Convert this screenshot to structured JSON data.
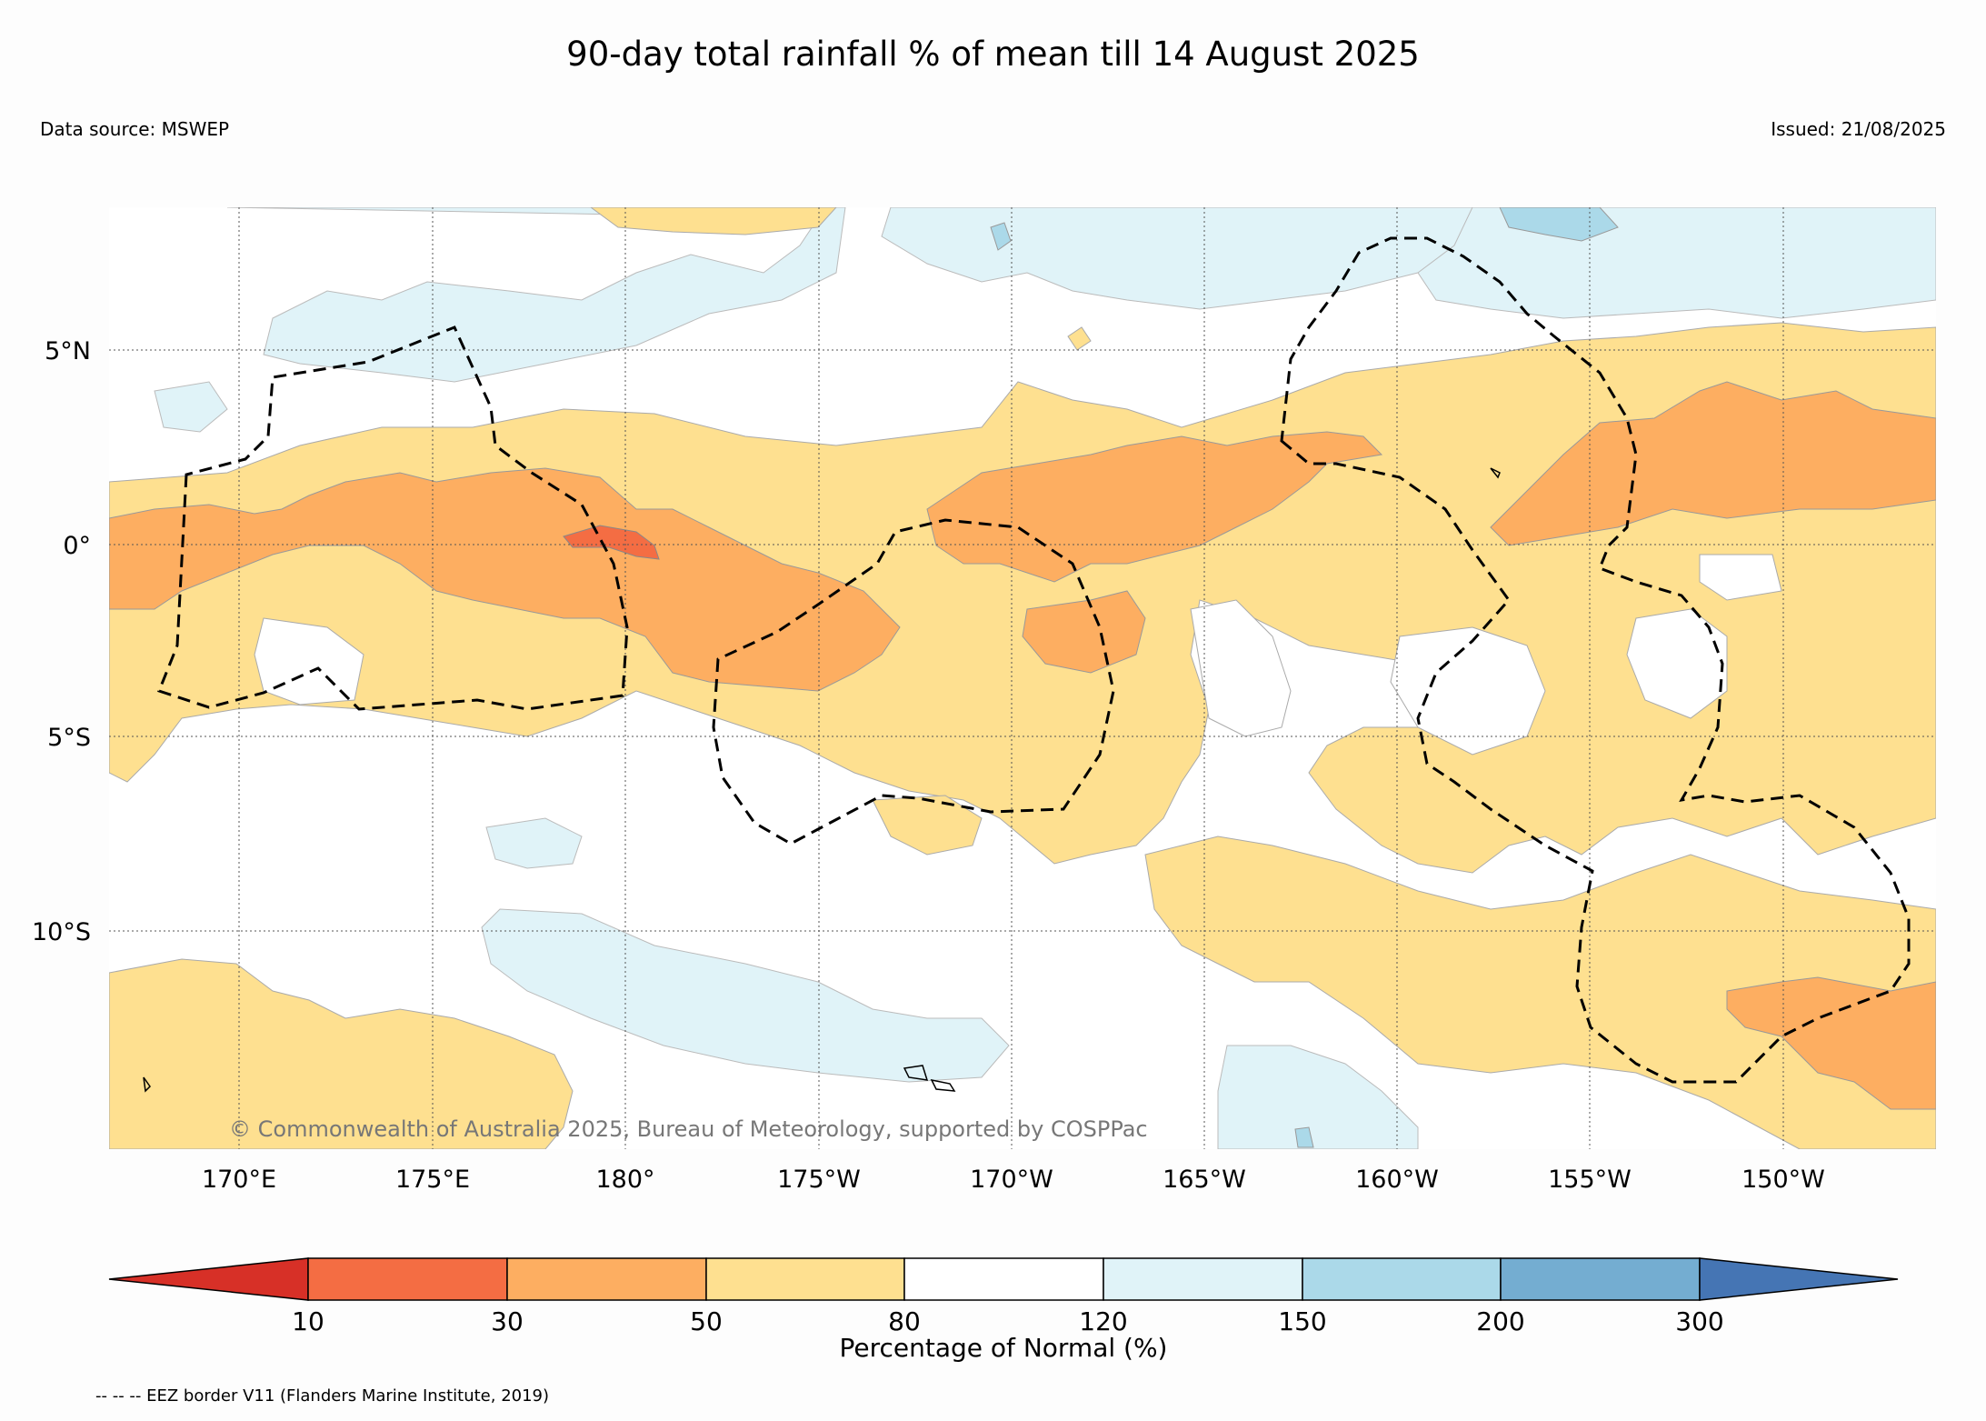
{
  "title": "90-day total rainfall % of mean till 14 August 2025",
  "data_source": "Data source: MSWEP",
  "issued": "Issued: 21/08/2025",
  "copyright": "© Commonwealth of Australia 2025, Bureau of Meteorology, supported by COSPPac",
  "eez_note": "-- -- -- EEZ border V11 (Flanders Marine Institute, 2019)",
  "map": {
    "lon_labels": [
      "170°E",
      "175°E",
      "180°",
      "175°W",
      "170°W",
      "165°W",
      "160°W",
      "155°W",
      "150°W"
    ],
    "lat_labels": [
      "5°N",
      "0°",
      "5°S",
      "10°S"
    ],
    "categories": [
      {
        "range": "<10",
        "color": "#d73027"
      },
      {
        "range": "10-30",
        "color": "#f46d43"
      },
      {
        "range": "30-50",
        "color": "#fdae61"
      },
      {
        "range": "50-80",
        "color": "#fee090"
      },
      {
        "range": "80-120",
        "color": "#ffffff"
      },
      {
        "range": "120-150",
        "color": "#e0f3f8"
      },
      {
        "range": "150-200",
        "color": "#abd9e9"
      },
      {
        "range": "200-300",
        "color": "#74add1"
      },
      {
        "range": ">300",
        "color": "#4575b4"
      }
    ]
  },
  "colorbar": {
    "ticks": [
      "10",
      "30",
      "50",
      "80",
      "120",
      "150",
      "200",
      "300"
    ],
    "label": "Percentage of Normal (%)"
  }
}
